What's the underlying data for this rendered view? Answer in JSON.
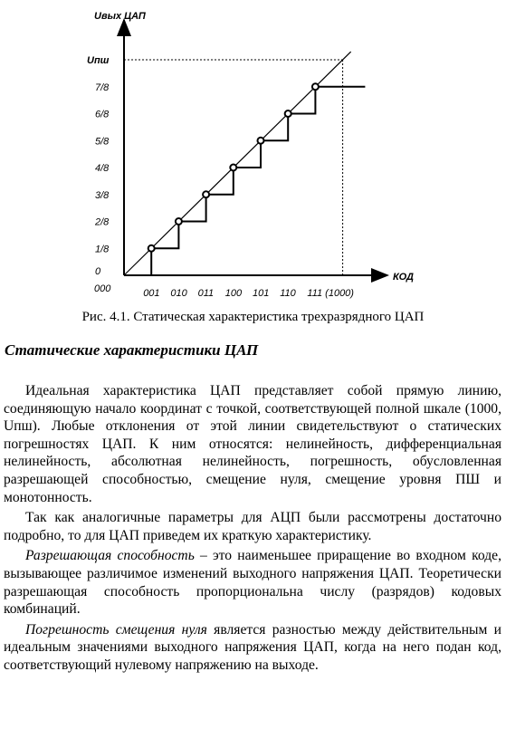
{
  "chart_data": {
    "type": "line",
    "title": "",
    "ylabel": "Uвых ЦАП",
    "xlabel": "КОД",
    "origin_label": "000",
    "x_categories": [
      "001",
      "010",
      "011",
      "100",
      "101",
      "110",
      "111 (1000)"
    ],
    "y_tick_labels": [
      "0",
      "1/8",
      "2/8",
      "3/8",
      "4/8",
      "5/8",
      "6/8",
      "7/8",
      "Uпш"
    ],
    "series": [
      {
        "values": [
          0.125,
          0.25,
          0.375,
          0.5,
          0.625,
          0.75,
          0.875
        ]
      }
    ],
    "ideal_line": {
      "from": [
        0,
        0
      ],
      "to": [
        8,
        1
      ]
    },
    "ylim": [
      0,
      1
    ],
    "grid": false,
    "legend": "none"
  },
  "caption": "Рис. 4.1. Статическая характеристика трехразрядного ЦАП",
  "section_title": "Статические характеристики ЦАП",
  "paragraphs": {
    "p1": "Идеальная характеристика ЦАП представляет собой прямую линию, соединяющую начало координат с точкой, соответствующей полной шкале (1000, Uпш). Любые отклонения от этой линии свидетельствуют о статических погрешностях ЦАП. К ним относятся: нелинейность, дифференциальная нелинейность, абсолютная нелинейность, погрешность, обусловленная разрешающей способностью, смещение нуля, смещение уровня ПШ и монотонность.",
    "p2": "Так как аналогичные параметры для АЦП были рассмотрены достаточно подробно, то для ЦАП приведем их краткую характеристику.",
    "p3_term": "Разрешающая способность",
    "p3_rest": " – это наименьшее приращение во входном коде, вызывающее различимое изменений выходного напряжения ЦАП. Теоретически разрешающая способность пропорциональна числу (разрядов) кодовых комбинаций.",
    "p4_term": "Погрешность смещения нуля",
    "p4_rest": " является разностью между действительным и идеальным значениями выходного напряжения ЦАП, когда на него подан код, соответствующий нулевому напряжению на выходе."
  }
}
